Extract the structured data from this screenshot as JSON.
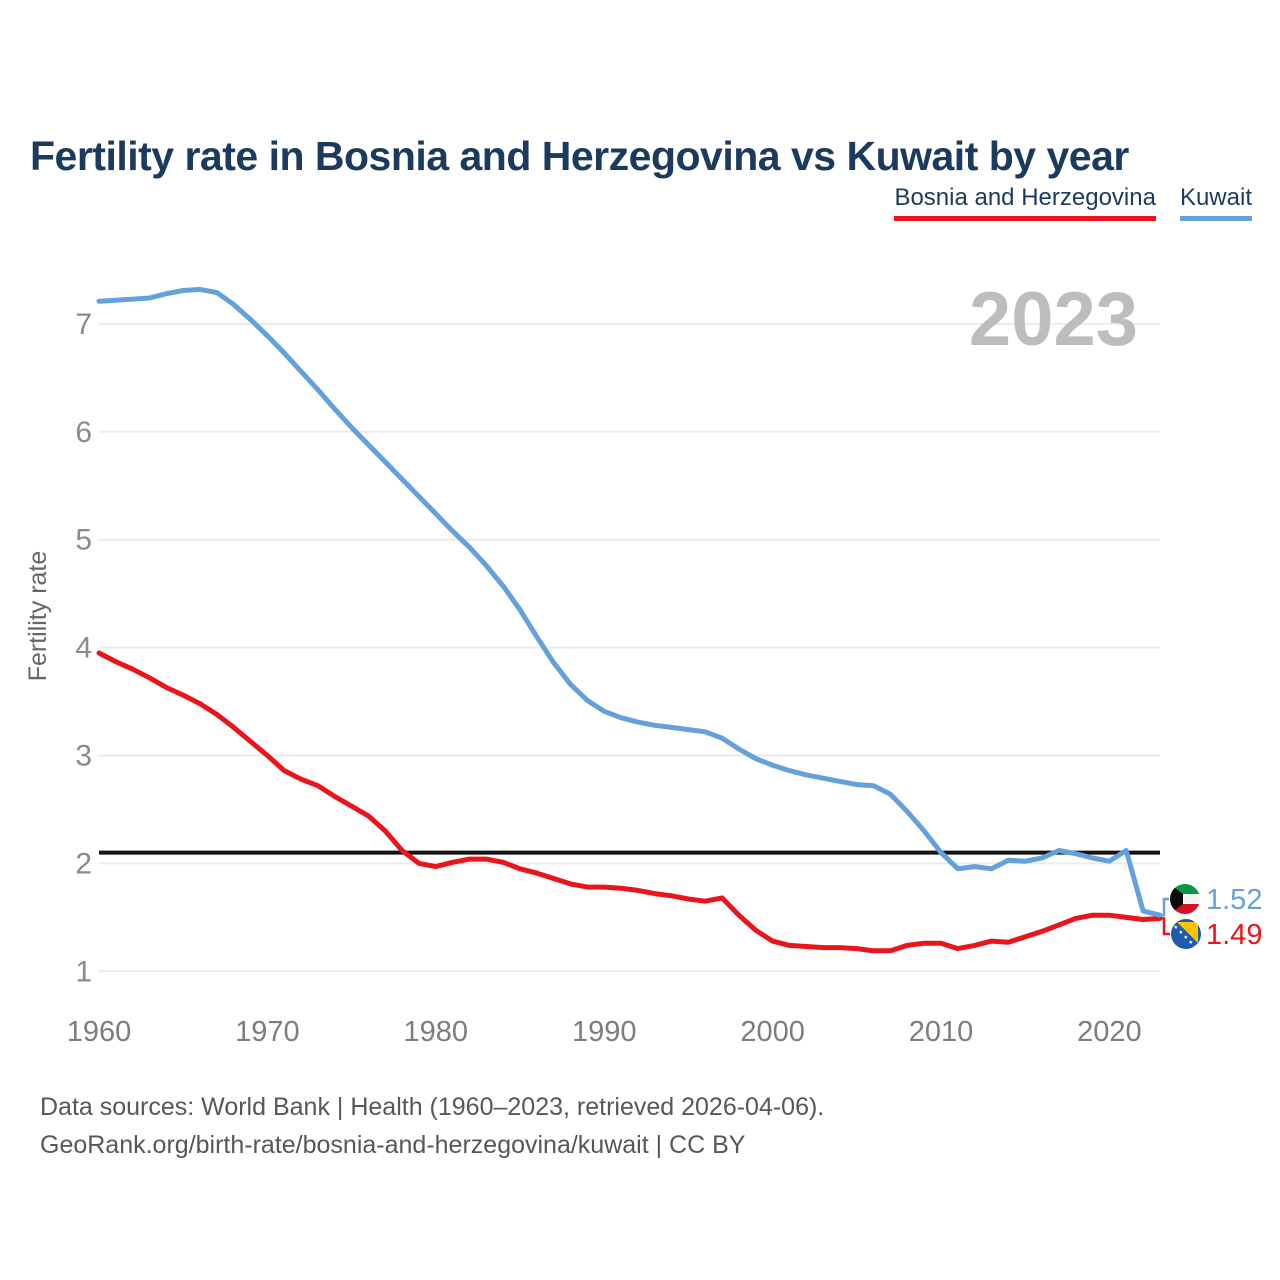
{
  "title": "Fertility rate in Bosnia and Herzegovina vs Kuwait by year",
  "legend": [
    {
      "label": "Bosnia and Herzegovina",
      "color": "#e9151b"
    },
    {
      "label": "Kuwait",
      "color": "#64a1dc"
    }
  ],
  "watermark": "2023",
  "y_axis": {
    "label": "Fertility rate",
    "ticks": [
      1,
      2,
      3,
      4,
      5,
      6,
      7
    ]
  },
  "x_axis": {
    "ticks": [
      1960,
      1970,
      1980,
      1990,
      2000,
      2010,
      2020
    ]
  },
  "end_labels": [
    {
      "series": "Kuwait",
      "value": "1.52",
      "color": "#64a1dc",
      "flag": "kuwait-flag-icon"
    },
    {
      "series": "Bosnia and Herzegovina",
      "value": "1.49",
      "color": "#e9151b",
      "flag": "bosnia-flag-icon"
    }
  ],
  "source": {
    "line1": "Data sources: World Bank | Health (1960–2023, retrieved 2026-04-06).",
    "line2": "GeoRank.org/birth-rate/bosnia-and-herzegovina/kuwait | CC BY"
  },
  "chart_data": {
    "type": "line",
    "title": "Fertility rate in Bosnia and Herzegovina vs Kuwait by year",
    "xlabel": "",
    "ylabel": "Fertility rate",
    "xlim": [
      1960,
      2023
    ],
    "ylim": [
      0.8,
      7.6
    ],
    "grid": true,
    "legend_position": "top-right",
    "reference_line": {
      "value": 2.1,
      "color": "#141414"
    },
    "years": [
      1960,
      1961,
      1962,
      1963,
      1964,
      1965,
      1966,
      1967,
      1968,
      1969,
      1970,
      1971,
      1972,
      1973,
      1974,
      1975,
      1976,
      1977,
      1978,
      1979,
      1980,
      1981,
      1982,
      1983,
      1984,
      1985,
      1986,
      1987,
      1988,
      1989,
      1990,
      1991,
      1992,
      1993,
      1994,
      1995,
      1996,
      1997,
      1998,
      1999,
      2000,
      2001,
      2002,
      2003,
      2004,
      2005,
      2006,
      2007,
      2008,
      2009,
      2010,
      2011,
      2012,
      2013,
      2014,
      2015,
      2016,
      2017,
      2018,
      2019,
      2020,
      2021,
      2022,
      2023
    ],
    "series": [
      {
        "name": "Bosnia and Herzegovina",
        "color": "#e9151b",
        "end_value": 1.49,
        "values": [
          3.95,
          3.87,
          3.8,
          3.72,
          3.63,
          3.56,
          3.48,
          3.38,
          3.26,
          3.13,
          3.0,
          2.86,
          2.78,
          2.72,
          2.62,
          2.53,
          2.44,
          2.3,
          2.12,
          2.0,
          1.97,
          2.01,
          2.04,
          2.04,
          2.01,
          1.95,
          1.91,
          1.86,
          1.81,
          1.78,
          1.78,
          1.77,
          1.75,
          1.72,
          1.7,
          1.67,
          1.65,
          1.68,
          1.52,
          1.38,
          1.28,
          1.24,
          1.23,
          1.22,
          1.22,
          1.21,
          1.19,
          1.19,
          1.24,
          1.26,
          1.26,
          1.21,
          1.24,
          1.28,
          1.27,
          1.32,
          1.37,
          1.43,
          1.49,
          1.52,
          1.52,
          1.5,
          1.48,
          1.49
        ]
      },
      {
        "name": "Kuwait",
        "color": "#64a1dc",
        "end_value": 1.52,
        "values": [
          7.21,
          7.22,
          7.23,
          7.24,
          7.28,
          7.31,
          7.32,
          7.29,
          7.18,
          7.04,
          6.89,
          6.73,
          6.56,
          6.39,
          6.21,
          6.04,
          5.88,
          5.72,
          5.56,
          5.4,
          5.24,
          5.08,
          4.93,
          4.76,
          4.57,
          4.35,
          4.1,
          3.86,
          3.66,
          3.51,
          3.41,
          3.35,
          3.31,
          3.28,
          3.26,
          3.24,
          3.22,
          3.16,
          3.06,
          2.97,
          2.91,
          2.86,
          2.82,
          2.79,
          2.76,
          2.73,
          2.72,
          2.64,
          2.48,
          2.3,
          2.1,
          1.95,
          1.97,
          1.95,
          2.03,
          2.02,
          2.05,
          2.12,
          2.09,
          2.05,
          2.02,
          2.12,
          1.56,
          1.52
        ]
      }
    ]
  },
  "colors": {
    "title": "#1b3a5e",
    "grid": "#ebebeb",
    "tick_label": "#8b8b8b",
    "x_tick_label": "#7d7d7d",
    "watermark": "#bdbdbd",
    "source_text": "#575757",
    "reference_line": "#141414"
  }
}
